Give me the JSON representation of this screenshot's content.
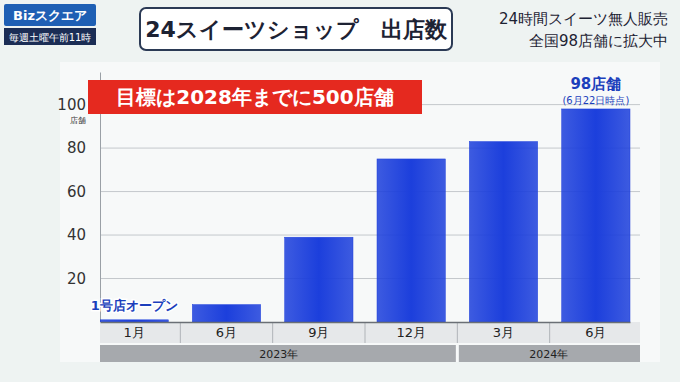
{
  "header": {
    "logo": "Bizスクエア",
    "schedule": "毎週土曜午前11時",
    "tagline": [
      "24時間スイーツ無人販売",
      "全国98店舗に拡大中"
    ]
  },
  "chart_data": {
    "type": "bar",
    "title": "24スイーツショップ　出店数",
    "annotations": [
      "目標は2028年までに500店舗",
      "1号店オープン",
      "98店舗",
      "(6月22日時点)"
    ],
    "ylabel": "店舗",
    "categories": [
      "1月",
      "6月",
      "9月",
      "12月",
      "3月",
      "6月"
    ],
    "category_groups": [
      {
        "label": "2023年",
        "categories": [
          "1月",
          "6月",
          "9月",
          "12月"
        ]
      },
      {
        "label": "2024年",
        "categories": [
          "3月",
          "6月"
        ]
      }
    ],
    "values": [
      1,
      8,
      39,
      75,
      83,
      98
    ],
    "color": "#1c3fdc",
    "ylim": [
      0,
      115
    ],
    "yticks": [
      20,
      40,
      60,
      80,
      100
    ],
    "grid": true
  }
}
